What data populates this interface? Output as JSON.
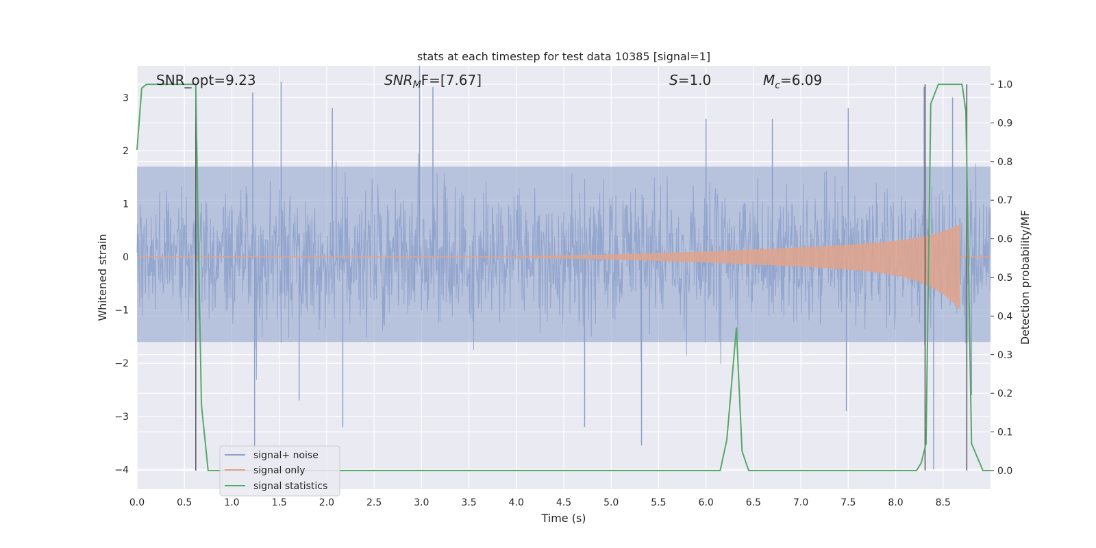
{
  "chart_data": {
    "type": "line",
    "title": "stats at each timestep for test data 10385 [signal=1]",
    "xlabel": "Time (s)",
    "ylabel": "Whitened strain",
    "y2label": "Detection probability/MF",
    "xlim": [
      0.0,
      9.0
    ],
    "ylim": [
      -4.37,
      3.6
    ],
    "y2lim": [
      -0.048,
      1.048
    ],
    "xticks": [
      "0.0",
      "0.5",
      "1.0",
      "1.5",
      "2.0",
      "2.5",
      "3.0",
      "3.5",
      "4.0",
      "4.5",
      "5.0",
      "5.5",
      "6.0",
      "6.5",
      "7.0",
      "7.5",
      "8.0",
      "8.5"
    ],
    "xtick_values": [
      0.0,
      0.5,
      1.0,
      1.5,
      2.0,
      2.5,
      3.0,
      3.5,
      4.0,
      4.5,
      5.0,
      5.5,
      6.0,
      6.5,
      7.0,
      7.5,
      8.0,
      8.5
    ],
    "yticks": [
      "3",
      "2",
      "1",
      "0",
      "−1",
      "−2",
      "−3",
      "−4"
    ],
    "ytick_values": [
      3,
      2,
      1,
      0,
      -1,
      -2,
      -3,
      -4
    ],
    "y2ticks": [
      "1.0",
      "0.9",
      "0.8",
      "0.7",
      "0.6",
      "0.5",
      "0.4",
      "0.3",
      "0.2",
      "0.1",
      "0.0"
    ],
    "y2tick_values": [
      1.0,
      0.9,
      0.8,
      0.7,
      0.6,
      0.5,
      0.4,
      0.3,
      0.2,
      0.1,
      0.0
    ],
    "grid": true,
    "legend_position": "lower-left",
    "annotations": {
      "snr_opt": "SNR_opt=9.23",
      "snr_mf_base": "SNR",
      "snr_mf_sub": "M",
      "snr_mf_rest": "F=[7.67]",
      "s_base": "S",
      "s_rest": "=1.0",
      "mc_base": "M",
      "mc_sub": "c",
      "mc_rest": "=6.09"
    },
    "series": [
      {
        "name": "signal+ noise",
        "color": "#8da0cb",
        "style": "noise",
        "typical_envelope": [
          -1.6,
          1.7
        ],
        "peaks": [
          {
            "x": 1.22,
            "y": 3.1
          },
          {
            "x": 1.52,
            "y": 3.3
          },
          {
            "x": 2.06,
            "y": 2.8
          },
          {
            "x": 2.98,
            "y": 3.6
          },
          {
            "x": 3.12,
            "y": 3.2
          },
          {
            "x": 6.0,
            "y": 2.6
          },
          {
            "x": 6.7,
            "y": 2.6
          },
          {
            "x": 7.5,
            "y": 2.8
          },
          {
            "x": 8.3,
            "y": 3.2
          },
          {
            "x": 8.6,
            "y": 3.0
          }
        ],
        "troughs": [
          {
            "x": 1.24,
            "y": -3.6
          },
          {
            "x": 2.17,
            "y": -3.2
          },
          {
            "x": 1.71,
            "y": -2.7
          },
          {
            "x": 4.72,
            "y": -3.2
          },
          {
            "x": 5.32,
            "y": -3.55
          },
          {
            "x": 7.48,
            "y": -2.9
          },
          {
            "x": 8.4,
            "y": -4.0
          },
          {
            "x": 8.8,
            "y": -2.6
          }
        ]
      },
      {
        "name": "signal only",
        "color": "#e2a38b",
        "style": "chirp",
        "start": 4.0,
        "peak_x": 8.68,
        "peak_y": 0.62,
        "trough_y": -1.0
      },
      {
        "name": "signal statistics",
        "color": "#55a868",
        "axis": "right",
        "x": [
          0.0,
          0.05,
          0.1,
          0.3,
          0.6,
          0.62,
          0.65,
          0.68,
          0.75,
          1.0,
          6.15,
          6.22,
          6.32,
          6.38,
          6.45,
          6.5,
          8.22,
          8.27,
          8.32,
          8.37,
          8.45,
          8.6,
          8.7,
          8.74,
          8.8,
          8.92,
          9.0
        ],
        "y": [
          0.83,
          0.99,
          1.0,
          1.0,
          1.0,
          1.0,
          0.55,
          0.17,
          0.0,
          0.0,
          0.0,
          0.08,
          0.37,
          0.05,
          0.0,
          0.0,
          0.0,
          0.02,
          0.07,
          0.95,
          1.0,
          1.0,
          1.0,
          0.93,
          0.07,
          0.0,
          0.0
        ]
      }
    ],
    "vertical_lines": [
      0.62,
      8.31,
      8.75
    ]
  }
}
